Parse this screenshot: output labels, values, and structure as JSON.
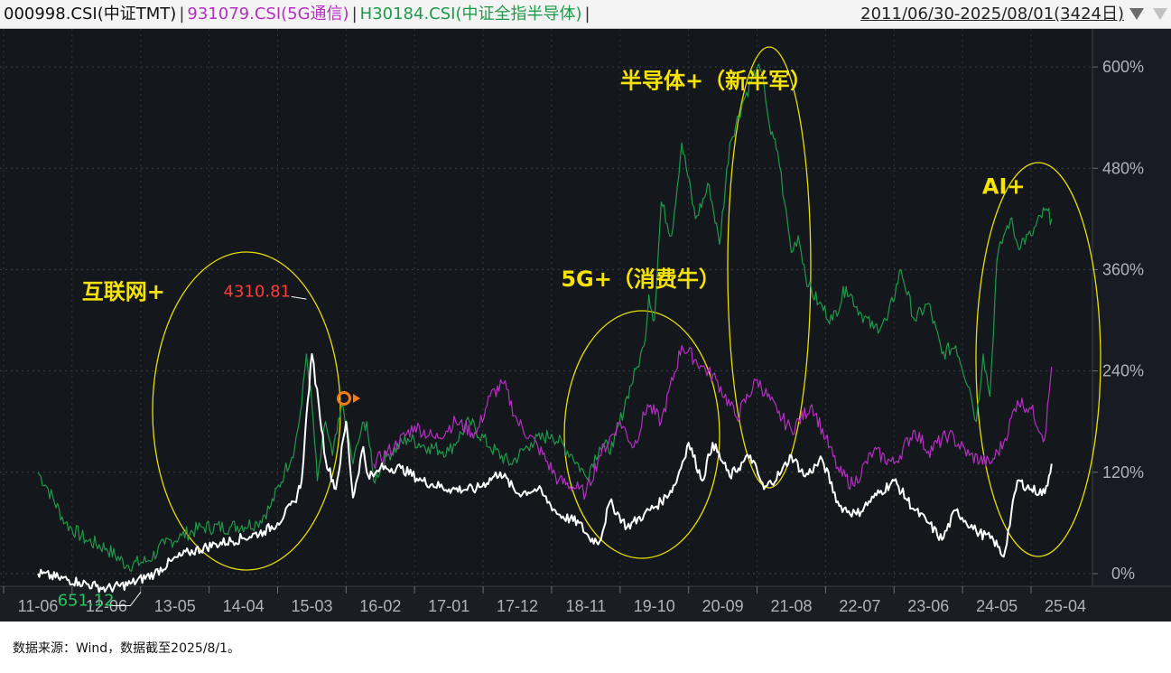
{
  "header": {
    "legend": [
      {
        "text": "000998.CSI(中证TMT)",
        "color": "#111111"
      },
      {
        "text": "931079.CSI(5G通信)",
        "color": "#b52fc2"
      },
      {
        "text": "H30184.CSI(中证全指半导体)",
        "color": "#1d9a49"
      }
    ],
    "separator": "|",
    "date_range": "2011/06/30-2025/08/01(3424日)"
  },
  "footer": {
    "source": "数据来源：Wind，数据截至2025/8/1。"
  },
  "chart_data": {
    "type": "line",
    "x_tick_labels": [
      "11-06",
      "12-06",
      "13-05",
      "14-04",
      "15-03",
      "16-02",
      "17-01",
      "17-12",
      "18-11",
      "19-10",
      "20-09",
      "21-08",
      "22-07",
      "23-06",
      "24-05",
      "25-04"
    ],
    "y_tick_labels": [
      "0%",
      "120%",
      "240%",
      "360%",
      "480%",
      "600%"
    ],
    "y_ticks": [
      0,
      120,
      240,
      360,
      480,
      600
    ],
    "ylim": [
      -15,
      645
    ],
    "series": [
      {
        "name": "000998.CSI(中证TMT)",
        "color": "#ffffff",
        "x": [
          0,
          0.3,
          0.6,
          0.85,
          1.0,
          1.35,
          1.7,
          1.95,
          2.2,
          2.6,
          3.0,
          3.3,
          3.5,
          3.6,
          3.75,
          3.85,
          3.9,
          4.0,
          4.1,
          4.2,
          4.35,
          4.5,
          4.6,
          4.75,
          4.8,
          4.9,
          5.0,
          5.3,
          5.6,
          6.0,
          6.4,
          6.75,
          7.0,
          7.3,
          7.6,
          7.9,
          8.05,
          8.2,
          8.35,
          8.6,
          8.85,
          9.1,
          9.3,
          9.5,
          9.7,
          9.85,
          10.1,
          10.4,
          10.6,
          10.85,
          11.0,
          11.2,
          11.45,
          11.7,
          11.95,
          12.2,
          12.5,
          12.8,
          13.0,
          13.2,
          13.4,
          13.7,
          13.95,
          14.1,
          14.3,
          14.5,
          14.7,
          14.8
        ],
        "y": [
          0,
          -5,
          -10,
          -15,
          -18,
          -12,
          0,
          15,
          25,
          35,
          42,
          50,
          60,
          70,
          85,
          110,
          165,
          260,
          200,
          135,
          100,
          180,
          90,
          150,
          120,
          115,
          125,
          125,
          110,
          100,
          100,
          120,
          95,
          100,
          70,
          60,
          42,
          38,
          85,
          55,
          70,
          85,
          105,
          155,
          110,
          155,
          115,
          140,
          100,
          120,
          140,
          115,
          135,
          80,
          70,
          90,
          110,
          75,
          60,
          40,
          75,
          50,
          40,
          20,
          110,
          100,
          95,
          130
        ]
      },
      {
        "name": "931079.CSI(5G通信)",
        "color": "#b52fc2",
        "x": [
          4.9,
          5.2,
          5.5,
          5.8,
          6.1,
          6.4,
          6.6,
          6.8,
          7.0,
          7.3,
          7.6,
          7.9,
          8.0,
          8.2,
          8.5,
          8.7,
          8.9,
          9.1,
          9.4,
          9.7,
          9.9,
          10.2,
          10.5,
          10.8,
          11.0,
          11.3,
          11.5,
          11.7,
          11.9,
          12.2,
          12.5,
          12.8,
          13.0,
          13.3,
          13.6,
          13.9,
          14.1,
          14.3,
          14.5,
          14.7,
          14.8
        ],
        "y": [
          130,
          150,
          175,
          160,
          180,
          165,
          210,
          225,
          180,
          150,
          110,
          100,
          95,
          140,
          180,
          150,
          200,
          180,
          270,
          245,
          230,
          185,
          230,
          190,
          170,
          200,
          160,
          120,
          105,
          145,
          130,
          170,
          145,
          165,
          140,
          130,
          155,
          205,
          195,
          160,
          245
        ]
      },
      {
        "name": "H30184.CSI(中证全指半导体)",
        "color": "#1d9a49",
        "x": [
          0,
          0.15,
          0.4,
          0.7,
          1.0,
          1.3,
          1.6,
          1.85,
          2.1,
          2.4,
          2.8,
          3.2,
          3.4,
          3.6,
          3.75,
          3.85,
          3.92,
          4.0,
          4.08,
          4.2,
          4.3,
          4.45,
          4.6,
          4.72,
          4.8,
          4.9,
          5.1,
          5.4,
          5.7,
          6.0,
          6.3,
          6.6,
          6.9,
          7.2,
          7.5,
          7.8,
          8.0,
          8.2,
          8.4,
          8.6,
          8.75,
          8.85,
          8.92,
          9.0,
          9.1,
          9.25,
          9.4,
          9.6,
          9.8,
          9.95,
          10.1,
          10.3,
          10.5,
          10.6,
          10.7,
          10.8,
          10.9,
          11.0,
          11.1,
          11.25,
          11.4,
          11.6,
          11.8,
          12.0,
          12.2,
          12.4,
          12.6,
          12.8,
          13.0,
          13.2,
          13.4,
          13.6,
          13.7,
          13.8,
          13.9,
          14.0,
          14.1,
          14.2,
          14.3,
          14.5,
          14.7,
          14.8
        ],
        "y": [
          120,
          100,
          60,
          40,
          30,
          10,
          15,
          35,
          45,
          55,
          55,
          60,
          80,
          120,
          150,
          200,
          260,
          200,
          110,
          180,
          140,
          200,
          130,
          170,
          180,
          110,
          140,
          160,
          150,
          145,
          180,
          150,
          130,
          155,
          165,
          140,
          115,
          150,
          150,
          210,
          245,
          270,
          330,
          300,
          440,
          400,
          510,
          420,
          460,
          390,
          510,
          560,
          600,
          580,
          520,
          500,
          440,
          380,
          400,
          340,
          320,
          300,
          340,
          310,
          290,
          300,
          360,
          300,
          320,
          260,
          270,
          220,
          180,
          260,
          210,
          370,
          400,
          420,
          390,
          400,
          430,
          420
        ]
      }
    ],
    "annotations": [
      {
        "text": "互联网+",
        "x": 1.25,
        "y": 325,
        "color": "#f5e20a"
      },
      {
        "text": "5G+（消费牛）",
        "x": 8.8,
        "y": 340,
        "color": "#f5e20a"
      },
      {
        "text": "半导体+（新半军）",
        "x": 9.9,
        "y": 575,
        "color": "#f5e20a"
      },
      {
        "text": "AI+",
        "x": 14.1,
        "y": 450,
        "color": "#f5e20a"
      },
      {
        "text": "4310.81",
        "x": 3.2,
        "y": 328,
        "color": "#ff3b3b"
      },
      {
        "text": "651.12",
        "x": 0.7,
        "y": -38,
        "color": "#22c55e"
      }
    ],
    "grid": true
  }
}
